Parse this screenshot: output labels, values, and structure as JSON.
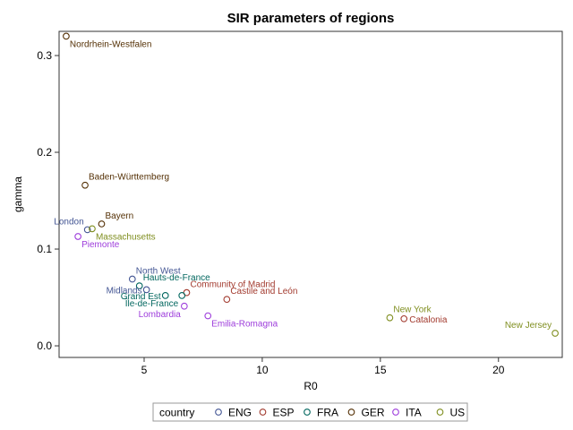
{
  "chart_data": {
    "type": "scatter",
    "title": "SIR parameters of regions",
    "xlabel": "R0",
    "ylabel": "gamma",
    "xlim": [
      1.4,
      22.7
    ],
    "ylim": [
      -0.012,
      0.325
    ],
    "x_ticks": [
      5,
      10,
      15,
      20
    ],
    "x_tick_labels": [
      "5",
      "10",
      "15",
      "20"
    ],
    "y_ticks": [
      0.0,
      0.1,
      0.2,
      0.3
    ],
    "y_tick_labels": [
      "0.0",
      "0.1",
      "0.2",
      "0.3"
    ],
    "grid": false,
    "legend": {
      "title": "country",
      "placement": "bottom",
      "entries": [
        "ENG",
        "ESP",
        "FRA",
        "GER",
        "ITA",
        "US"
      ]
    },
    "colors": {
      "ENG": "#445694",
      "ESP": "#a23a2e",
      "FRA": "#01665e",
      "GER": "#543005",
      "ITA": "#9d3cdb",
      "US": "#7f8e1f"
    },
    "points": [
      {
        "label": "Nordrhein-Westfalen",
        "country": "GER",
        "x": 1.7,
        "y": 0.32,
        "anchor": "right-below"
      },
      {
        "label": "Baden-Württemberg",
        "country": "GER",
        "x": 2.5,
        "y": 0.166,
        "anchor": "right-above"
      },
      {
        "label": "Bayern",
        "country": "GER",
        "x": 3.2,
        "y": 0.126,
        "anchor": "right-above"
      },
      {
        "label": "London",
        "country": "ENG",
        "x": 2.6,
        "y": 0.12,
        "anchor": "left-above"
      },
      {
        "label": "Massachusetts",
        "country": "US",
        "x": 2.8,
        "y": 0.121,
        "anchor": "right-below"
      },
      {
        "label": "Piemonte",
        "country": "ITA",
        "x": 2.2,
        "y": 0.113,
        "anchor": "right-below"
      },
      {
        "label": "North West",
        "country": "ENG",
        "x": 4.5,
        "y": 0.069,
        "anchor": "right-above"
      },
      {
        "label": "Hauts-de-France",
        "country": "FRA",
        "x": 4.8,
        "y": 0.062,
        "anchor": "right-above"
      },
      {
        "label": "Midlands",
        "country": "ENG",
        "x": 5.1,
        "y": 0.058,
        "anchor": "left"
      },
      {
        "label": "Community of Madrid",
        "country": "ESP",
        "x": 6.8,
        "y": 0.055,
        "anchor": "right-above"
      },
      {
        "label": "Grand Est",
        "country": "FRA",
        "x": 5.9,
        "y": 0.052,
        "anchor": "left"
      },
      {
        "label": "Île-de-France",
        "country": "FRA",
        "x": 6.6,
        "y": 0.052,
        "anchor": "left-below"
      },
      {
        "label": "Castile and León",
        "country": "ESP",
        "x": 8.5,
        "y": 0.048,
        "anchor": "right-above"
      },
      {
        "label": "Lombardia",
        "country": "ITA",
        "x": 6.7,
        "y": 0.041,
        "anchor": "left-below"
      },
      {
        "label": "Emilia-Romagna",
        "country": "ITA",
        "x": 7.7,
        "y": 0.031,
        "anchor": "right-below"
      },
      {
        "label": "New York",
        "country": "US",
        "x": 15.4,
        "y": 0.029,
        "anchor": "right-above"
      },
      {
        "label": "Catalonia",
        "country": "ESP",
        "x": 16.0,
        "y": 0.028,
        "anchor": "right"
      },
      {
        "label": "New Jersey",
        "country": "US",
        "x": 22.4,
        "y": 0.013,
        "anchor": "left-above"
      }
    ]
  }
}
